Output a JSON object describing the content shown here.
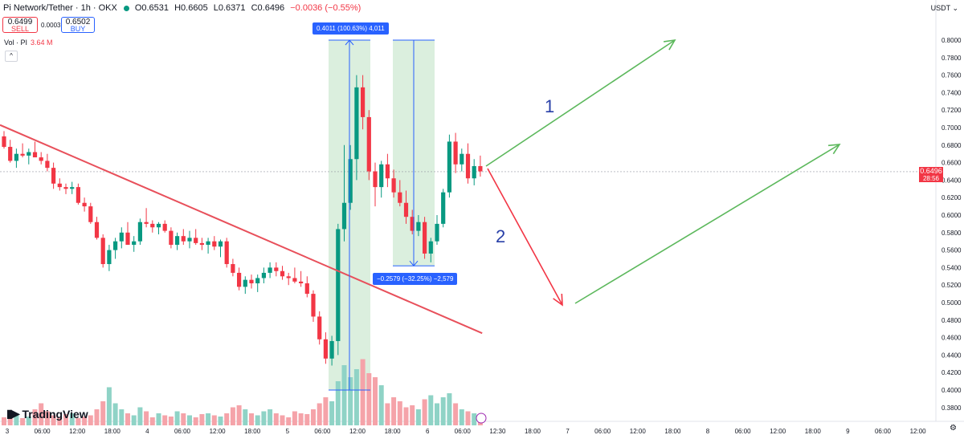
{
  "header": {
    "title": "Pi Network/Tether · 1h · OKX",
    "open": "O0.6531",
    "high": "H0.6605",
    "low": "L0.6371",
    "close": "C0.6496",
    "change": "−0.0036 (−0.55%)"
  },
  "trade": {
    "sell_price": "0.6499",
    "sell_label": "SELL",
    "spread": "0.0003",
    "buy_price": "0.6502",
    "buy_label": "BUY"
  },
  "volume": {
    "label": "Vol · PI",
    "value": "3.64 M"
  },
  "axis": {
    "currency_label": "USDT ⌄"
  },
  "price_tag": {
    "price": "0.6496",
    "countdown": "28:56"
  },
  "measure_up_label": "0.4011 (100.63%) 4,011",
  "measure_down_label": "−0.2579 (−32.25%) −2,579",
  "scenario_labels": [
    "1",
    "2"
  ],
  "brand": "TradingView",
  "colors": {
    "up": "#089981",
    "down": "#f23645",
    "trend": "#e8505b",
    "arrow_green": "#5cb85c",
    "measure_fill": "#cfead3",
    "measure_line": "#2962ff"
  },
  "chart_data": {
    "type": "candlestick",
    "yaxis": {
      "min": 0.38,
      "max": 0.82,
      "ticks": [
        0.38,
        0.4,
        0.42,
        0.44,
        0.46,
        0.48,
        0.5,
        0.52,
        0.54,
        0.56,
        0.58,
        0.6,
        0.62,
        0.64,
        0.66,
        0.68,
        0.7,
        0.72,
        0.74,
        0.76,
        0.78,
        0.8
      ]
    },
    "xaxis": {
      "labels": [
        "3",
        "06:00",
        "12:00",
        "18:00",
        "4",
        "06:00",
        "12:00",
        "18:00",
        "5",
        "06:00",
        "12:00",
        "18:00",
        "6",
        "06:00",
        "12:30",
        "18:00",
        "7",
        "06:00",
        "12:00",
        "18:00",
        "8",
        "06:00",
        "12:00",
        "18:00",
        "9",
        "06:00",
        "12:00"
      ]
    },
    "candles": [
      [
        0.69,
        0.696,
        0.676,
        0.678
      ],
      [
        0.678,
        0.686,
        0.66,
        0.662
      ],
      [
        0.662,
        0.676,
        0.654,
        0.67
      ],
      [
        0.67,
        0.682,
        0.666,
        0.668
      ],
      [
        0.668,
        0.676,
        0.658,
        0.672
      ],
      [
        0.672,
        0.684,
        0.666,
        0.666
      ],
      [
        0.666,
        0.672,
        0.658,
        0.662
      ],
      [
        0.662,
        0.67,
        0.65,
        0.654
      ],
      [
        0.654,
        0.66,
        0.63,
        0.636
      ],
      [
        0.636,
        0.642,
        0.628,
        0.632
      ],
      [
        0.632,
        0.636,
        0.624,
        0.63
      ],
      [
        0.63,
        0.638,
        0.624,
        0.632
      ],
      [
        0.632,
        0.636,
        0.612,
        0.614
      ],
      [
        0.614,
        0.62,
        0.604,
        0.61
      ],
      [
        0.61,
        0.614,
        0.59,
        0.592
      ],
      [
        0.592,
        0.598,
        0.572,
        0.574
      ],
      [
        0.574,
        0.578,
        0.54,
        0.544
      ],
      [
        0.544,
        0.566,
        0.536,
        0.56
      ],
      [
        0.56,
        0.574,
        0.55,
        0.57
      ],
      [
        0.57,
        0.586,
        0.562,
        0.58
      ],
      [
        0.58,
        0.592,
        0.566,
        0.566
      ],
      [
        0.566,
        0.576,
        0.558,
        0.57
      ],
      [
        0.57,
        0.596,
        0.566,
        0.592
      ],
      [
        0.592,
        0.608,
        0.586,
        0.59
      ],
      [
        0.59,
        0.594,
        0.58,
        0.586
      ],
      [
        0.586,
        0.592,
        0.578,
        0.59
      ],
      [
        0.59,
        0.594,
        0.58,
        0.582
      ],
      [
        0.582,
        0.586,
        0.562,
        0.566
      ],
      [
        0.566,
        0.58,
        0.56,
        0.576
      ],
      [
        0.576,
        0.584,
        0.566,
        0.57
      ],
      [
        0.57,
        0.582,
        0.562,
        0.574
      ],
      [
        0.574,
        0.584,
        0.566,
        0.568
      ],
      [
        0.568,
        0.574,
        0.56,
        0.566
      ],
      [
        0.566,
        0.574,
        0.556,
        0.57
      ],
      [
        0.57,
        0.576,
        0.56,
        0.564
      ],
      [
        0.564,
        0.572,
        0.552,
        0.57
      ],
      [
        0.57,
        0.574,
        0.54,
        0.544
      ],
      [
        0.544,
        0.55,
        0.53,
        0.534
      ],
      [
        0.534,
        0.54,
        0.514,
        0.518
      ],
      [
        0.518,
        0.53,
        0.51,
        0.526
      ],
      [
        0.526,
        0.532,
        0.516,
        0.522
      ],
      [
        0.522,
        0.532,
        0.512,
        0.528
      ],
      [
        0.528,
        0.54,
        0.522,
        0.534
      ],
      [
        0.534,
        0.546,
        0.528,
        0.54
      ],
      [
        0.54,
        0.546,
        0.53,
        0.536
      ],
      [
        0.536,
        0.542,
        0.526,
        0.53
      ],
      [
        0.53,
        0.534,
        0.52,
        0.528
      ],
      [
        0.528,
        0.54,
        0.522,
        0.524
      ],
      [
        0.524,
        0.536,
        0.518,
        0.522
      ],
      [
        0.522,
        0.53,
        0.506,
        0.51
      ],
      [
        0.51,
        0.514,
        0.478,
        0.484
      ],
      [
        0.484,
        0.49,
        0.452,
        0.458
      ],
      [
        0.458,
        0.466,
        0.43,
        0.436
      ],
      [
        0.436,
        0.462,
        0.428,
        0.456
      ],
      [
        0.456,
        0.59,
        0.44,
        0.584
      ],
      [
        0.584,
        0.68,
        0.57,
        0.614
      ],
      [
        0.614,
        0.68,
        0.606,
        0.664
      ],
      [
        0.664,
        0.76,
        0.64,
        0.746
      ],
      [
        0.746,
        0.76,
        0.698,
        0.712
      ],
      [
        0.712,
        0.72,
        0.64,
        0.65
      ],
      [
        0.65,
        0.66,
        0.61,
        0.632
      ],
      [
        0.632,
        0.662,
        0.62,
        0.658
      ],
      [
        0.658,
        0.67,
        0.632,
        0.642
      ],
      [
        0.642,
        0.652,
        0.62,
        0.626
      ],
      [
        0.626,
        0.64,
        0.61,
        0.614
      ],
      [
        0.614,
        0.628,
        0.59,
        0.598
      ],
      [
        0.598,
        0.606,
        0.578,
        0.582
      ],
      [
        0.582,
        0.6,
        0.576,
        0.592
      ],
      [
        0.592,
        0.598,
        0.55,
        0.556
      ],
      [
        0.556,
        0.574,
        0.546,
        0.57
      ],
      [
        0.57,
        0.6,
        0.566,
        0.59
      ],
      [
        0.59,
        0.63,
        0.586,
        0.626
      ],
      [
        0.626,
        0.692,
        0.62,
        0.684
      ],
      [
        0.684,
        0.694,
        0.648,
        0.658
      ],
      [
        0.658,
        0.676,
        0.65,
        0.67
      ],
      [
        0.67,
        0.682,
        0.636,
        0.642
      ],
      [
        0.642,
        0.664,
        0.634,
        0.656
      ],
      [
        0.656,
        0.668,
        0.644,
        0.65
      ]
    ],
    "volumes": [
      0.2,
      0.25,
      0.3,
      0.18,
      0.22,
      0.4,
      0.55,
      0.35,
      0.25,
      0.2,
      0.28,
      0.3,
      0.18,
      0.22,
      0.25,
      0.4,
      0.6,
      0.95,
      0.55,
      0.4,
      0.3,
      0.25,
      0.45,
      0.35,
      0.2,
      0.3,
      0.25,
      0.22,
      0.35,
      0.3,
      0.25,
      0.2,
      0.28,
      0.3,
      0.25,
      0.22,
      0.3,
      0.45,
      0.5,
      0.4,
      0.3,
      0.25,
      0.35,
      0.4,
      0.3,
      0.25,
      0.2,
      0.35,
      0.3,
      0.28,
      0.4,
      0.55,
      0.7,
      0.6,
      1.1,
      1.5,
      1.2,
      1.4,
      1.65,
      1.3,
      1.2,
      1.0,
      0.55,
      0.7,
      0.6,
      0.45,
      0.5,
      0.4,
      0.65,
      0.75,
      0.55,
      0.7,
      0.8,
      0.55,
      0.4,
      0.35,
      0.3,
      0.2
    ],
    "trendline": [
      [
        0,
        0.703
      ],
      [
        77.3,
        0.465
      ]
    ],
    "measure_up": {
      "from": 0.4,
      "to": 0.8
    },
    "measure_down": {
      "from": 0.8,
      "to": 0.542
    },
    "current_price": 0.6496
  }
}
